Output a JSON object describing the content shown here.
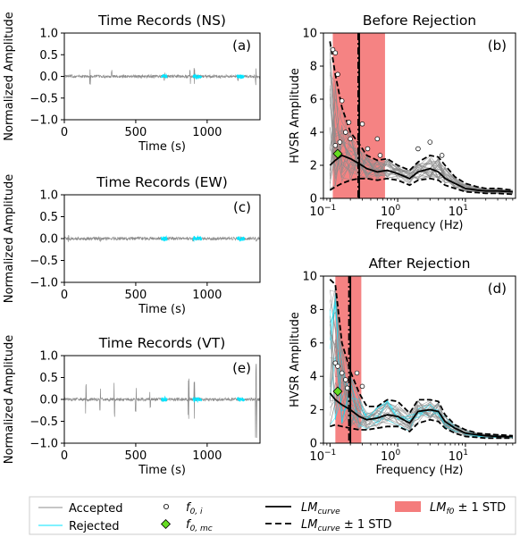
{
  "chart_data": [
    {
      "id": "a",
      "type": "line",
      "title": "Time Records (NS)",
      "panel_label": "(a)",
      "xlabel": "Time (s)",
      "ylabel": "Normalized Amplitude",
      "xlim": [
        0,
        1370
      ],
      "ylim": [
        -1.0,
        1.0
      ],
      "xticks": [
        0,
        500,
        1000
      ],
      "yticks": [
        -1.0,
        -0.5,
        0.0,
        0.5,
        1.0
      ],
      "ytick_labels": [
        "−1.0",
        "−0.5",
        "0.0",
        "0.5",
        "1.0"
      ],
      "spikes": [
        [
          180,
          0.25
        ],
        [
          330,
          -0.15
        ],
        [
          700,
          0.1
        ],
        [
          880,
          0.18
        ],
        [
          910,
          -0.2
        ],
        [
          1215,
          0.12
        ],
        [
          1340,
          0.2
        ]
      ],
      "rejected_windows": [
        [
          680,
          720
        ],
        [
          900,
          960
        ],
        [
          1210,
          1260
        ]
      ]
    },
    {
      "id": "c",
      "type": "line",
      "title": "Time Records (EW)",
      "panel_label": "(c)",
      "xlabel": "Time (s)",
      "ylabel": "Normalized Amplitude",
      "xlim": [
        0,
        1370
      ],
      "ylim": [
        -1.0,
        1.0
      ],
      "xticks": [
        0,
        500,
        1000
      ],
      "yticks": [
        -1.0,
        -0.5,
        0.0,
        0.5,
        1.0
      ],
      "ytick_labels": [
        "−1.0",
        "−0.5",
        "0.0",
        "0.5",
        "1.0"
      ],
      "spikes": [
        [
          30,
          0.08
        ],
        [
          250,
          -0.06
        ],
        [
          700,
          0.06
        ],
        [
          900,
          0.06
        ],
        [
          1345,
          0.08
        ]
      ],
      "rejected_windows": [
        [
          680,
          720
        ],
        [
          900,
          960
        ],
        [
          1210,
          1260
        ]
      ]
    },
    {
      "id": "e",
      "type": "line",
      "title": "Time Records (VT)",
      "panel_label": "(e)",
      "xlabel": "Time (s)",
      "ylabel": "Normalized Amplitude",
      "xlim": [
        0,
        1370
      ],
      "ylim": [
        -1.0,
        1.0
      ],
      "xticks": [
        0,
        500,
        1000
      ],
      "yticks": [
        -1.0,
        -0.5,
        0.0,
        0.5,
        1.0
      ],
      "ytick_labels": [
        "−1.0",
        "−0.5",
        "0.0",
        "0.5",
        "1.0"
      ],
      "spikes": [
        [
          150,
          -0.35
        ],
        [
          250,
          0.3
        ],
        [
          350,
          0.4
        ],
        [
          500,
          -0.3
        ],
        [
          600,
          0.25
        ],
        [
          870,
          0.5
        ],
        [
          910,
          -0.45
        ],
        [
          1340,
          0.95
        ],
        [
          1345,
          -0.95
        ]
      ],
      "rejected_windows": [
        [
          680,
          720
        ],
        [
          900,
          960
        ],
        [
          1210,
          1260
        ]
      ]
    },
    {
      "id": "b",
      "type": "line",
      "title": "Before Rejection",
      "panel_label": "(b)",
      "xlabel": "Frequency (Hz)",
      "ylabel": "HVSR Amplitude",
      "xscale": "log",
      "xlim": [
        0.08,
        55
      ],
      "ylim": [
        0,
        10
      ],
      "yticks": [
        0,
        2,
        4,
        6,
        8,
        10
      ],
      "band": [
        0.11,
        0.65
      ],
      "lm_vline": 0.27,
      "lm_dashdot_vline": 0.26,
      "freq": [
        0.1,
        0.12,
        0.15,
        0.2,
        0.27,
        0.35,
        0.5,
        0.7,
        1.0,
        1.5,
        2.0,
        3.0,
        4.0,
        5.0,
        7.0,
        10,
        15,
        20,
        30,
        50
      ],
      "series": [
        {
          "role": "lm",
          "values": [
            2.0,
            2.3,
            2.6,
            2.4,
            2.1,
            1.8,
            1.6,
            1.7,
            1.5,
            1.2,
            1.6,
            1.8,
            1.6,
            1.2,
            0.9,
            0.6,
            0.5,
            0.45,
            0.45,
            0.4
          ]
        },
        {
          "role": "plus",
          "values": [
            9.5,
            7.5,
            5.5,
            4.0,
            3.3,
            2.6,
            2.3,
            2.4,
            2.0,
            1.7,
            2.2,
            2.6,
            2.5,
            2.0,
            1.3,
            0.9,
            0.7,
            0.6,
            0.6,
            0.5
          ]
        },
        {
          "role": "minus",
          "values": [
            0.5,
            0.7,
            0.9,
            1.1,
            1.2,
            1.2,
            1.1,
            1.2,
            1.1,
            0.8,
            1.1,
            1.2,
            1.1,
            0.8,
            0.6,
            0.4,
            0.35,
            0.3,
            0.3,
            0.25
          ]
        }
      ],
      "f0_points": [
        [
          0.11,
          9.0
        ],
        [
          0.12,
          8.8
        ],
        [
          0.13,
          7.5
        ],
        [
          0.15,
          5.9
        ],
        [
          0.17,
          4.0
        ],
        [
          0.19,
          4.6
        ],
        [
          0.2,
          3.6
        ],
        [
          0.12,
          3.2
        ],
        [
          0.14,
          3.4
        ],
        [
          0.3,
          4.5
        ],
        [
          0.36,
          3.0
        ],
        [
          0.5,
          3.6
        ],
        [
          0.55,
          2.6
        ],
        [
          2.0,
          3.0
        ],
        [
          3.0,
          3.4
        ],
        [
          4.5,
          2.6
        ]
      ],
      "f0_mc": [
        0.13,
        2.7
      ]
    },
    {
      "id": "d",
      "type": "line",
      "title": "After Rejection",
      "panel_label": "(d)",
      "xlabel": "Frequency (Hz)",
      "ylabel": "HVSR Amplitude",
      "xscale": "log",
      "xlim": [
        0.08,
        55
      ],
      "ylim": [
        0,
        10
      ],
      "yticks": [
        0,
        2,
        4,
        6,
        8,
        10
      ],
      "band": [
        0.12,
        0.29
      ],
      "lm_vline": 0.2,
      "lm_dashdot_vline": 0.19,
      "freq": [
        0.1,
        0.12,
        0.15,
        0.2,
        0.27,
        0.35,
        0.5,
        0.7,
        1.0,
        1.5,
        2.0,
        3.0,
        4.0,
        5.0,
        7.0,
        10,
        15,
        20,
        30,
        50
      ],
      "series": [
        {
          "role": "lm",
          "values": [
            3.0,
            2.6,
            2.3,
            2.0,
            1.6,
            1.4,
            1.5,
            1.7,
            1.6,
            1.2,
            1.9,
            2.0,
            1.9,
            1.3,
            0.9,
            0.6,
            0.5,
            0.45,
            0.4,
            0.4
          ]
        },
        {
          "role": "plus",
          "values": [
            9.8,
            9.5,
            6.0,
            4.3,
            3.0,
            2.2,
            2.2,
            2.6,
            2.5,
            1.8,
            2.6,
            2.6,
            2.5,
            1.7,
            1.1,
            0.8,
            0.6,
            0.55,
            0.5,
            0.45
          ]
        },
        {
          "role": "minus",
          "values": [
            1.0,
            1.1,
            1.0,
            0.9,
            0.8,
            0.8,
            0.9,
            1.0,
            1.0,
            0.7,
            1.2,
            1.4,
            1.3,
            0.9,
            0.6,
            0.4,
            0.35,
            0.3,
            0.3,
            0.3
          ]
        }
      ],
      "f0_points": [
        [
          0.12,
          4.8
        ],
        [
          0.13,
          4.6
        ],
        [
          0.15,
          4.2
        ],
        [
          0.17,
          3.8
        ],
        [
          0.18,
          3.3
        ],
        [
          0.25,
          4.2
        ],
        [
          0.3,
          3.4
        ]
      ],
      "f0_mc": [
        0.13,
        3.1
      ]
    }
  ],
  "legend": {
    "accepted": "Accepted",
    "rejected": "Rejected",
    "f0i_base": "f",
    "f0i_sub": "0, i",
    "f0mc_base": "f",
    "f0mc_sub": "0, mc",
    "lm_base": "LM",
    "lm_sub": "curve",
    "lmstd_base": "LM",
    "lmstd_sub": "curve",
    "lmstd_suffix": " ± 1 STD",
    "lmf0_base": "LM",
    "lmf0_sub": "f0",
    "lmf0_suffix": " ± 1 STD"
  },
  "colors": {
    "accepted": "#8c8c8c",
    "rejected": "#00e5ff",
    "band": "#f47c7c",
    "f0mc": "#66dd22",
    "lm": "#000000"
  }
}
